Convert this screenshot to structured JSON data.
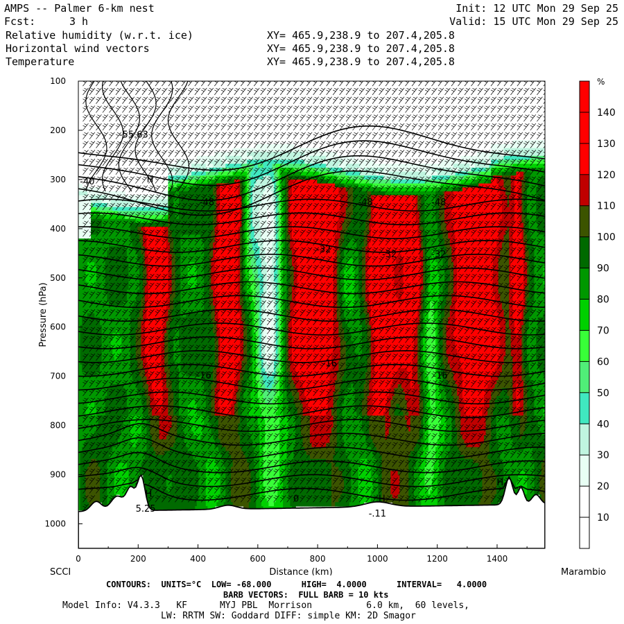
{
  "header": {
    "title": "AMPS -- Palmer 6-km nest",
    "fcst_label": "Fcst:",
    "fcst_value": "3 h",
    "init": "Init: 12 UTC Mon 29 Sep 25",
    "valid": "Valid: 15 UTC Mon 29 Sep 25",
    "fields": [
      {
        "name": "Relative humidity (w.r.t. ice)",
        "xy": "XY= 465.9,238.9 to 207.4,205.8"
      },
      {
        "name": "Horizontal wind vectors",
        "xy": "XY= 465.9,238.9 to 207.4,205.8"
      },
      {
        "name": "Temperature",
        "xy": "XY= 465.9,238.9 to 207.4,205.8"
      }
    ]
  },
  "chart_data": {
    "type": "heatmap",
    "xlabel": "Distance (km)",
    "ylabel": "Pressure (hPa)",
    "xlim": [
      0,
      1560
    ],
    "ylim": [
      1050,
      100
    ],
    "x_ticks": [
      0,
      200,
      400,
      600,
      800,
      1000,
      1200,
      1400
    ],
    "y_ticks": [
      100,
      200,
      300,
      400,
      500,
      600,
      700,
      800,
      900,
      1000
    ],
    "left_endpoint": "SCCI",
    "right_endpoint": "Marambio",
    "colorbar": {
      "unit": "%",
      "levels": [
        10,
        20,
        30,
        40,
        50,
        60,
        70,
        80,
        90,
        100,
        110,
        120,
        130,
        140
      ],
      "colors": [
        "#ffffff",
        "#ffffff",
        "#e8fff4",
        "#c0f5e0",
        "#40e8c0",
        "#50ee78",
        "#38ff38",
        "#00d000",
        "#009800",
        "#006a00",
        "#3c5400",
        "#c00000",
        "#ff0000",
        "#ff0000",
        "#ff0000"
      ]
    },
    "temperature_contour_labels": [
      {
        "x": 185,
        "p": 215,
        "text": "-55.63"
      },
      {
        "x": 30,
        "p": 310,
        "text": "-40"
      },
      {
        "x": 430,
        "p": 352,
        "text": "-48"
      },
      {
        "x": 960,
        "p": 352,
        "text": "-48"
      },
      {
        "x": 1205,
        "p": 352,
        "text": "-48"
      },
      {
        "x": 820,
        "p": 448,
        "text": "-32"
      },
      {
        "x": 1040,
        "p": 458,
        "text": "-32"
      },
      {
        "x": 1205,
        "p": 458,
        "text": "-32"
      },
      {
        "x": 420,
        "p": 705,
        "text": "-16"
      },
      {
        "x": 840,
        "p": 680,
        "text": "-16"
      },
      {
        "x": 1210,
        "p": 705,
        "text": "-16"
      },
      {
        "x": 728,
        "p": 955,
        "text": "0"
      },
      {
        "x": 1000,
        "p": 985,
        "text": "-.11"
      },
      {
        "x": 225,
        "p": 975,
        "text": "5.25"
      }
    ],
    "extrema_labels": [
      {
        "x": 235,
        "p": 945,
        "text": "H"
      },
      {
        "x": 1015,
        "p": 955,
        "text": "H"
      },
      {
        "x": 240,
        "p": 306,
        "text": "H"
      },
      {
        "x": 1410,
        "p": 922,
        "text": "H"
      }
    ]
  },
  "footer": {
    "contours": "CONTOURS:  UNITS=°C  LOW= -68.000      HIGH=  4.0000      INTERVAL=   4.0000",
    "barbs": "BARB VECTORS:  FULL BARB = 10 kts",
    "model1": "Model Info: V4.3.3   KF      MYJ PBL  Morrison          6.0 km,  60 levels,",
    "model2": "LW: RRTM SW: Goddard DIFF: simple KM: 2D Smagor"
  }
}
